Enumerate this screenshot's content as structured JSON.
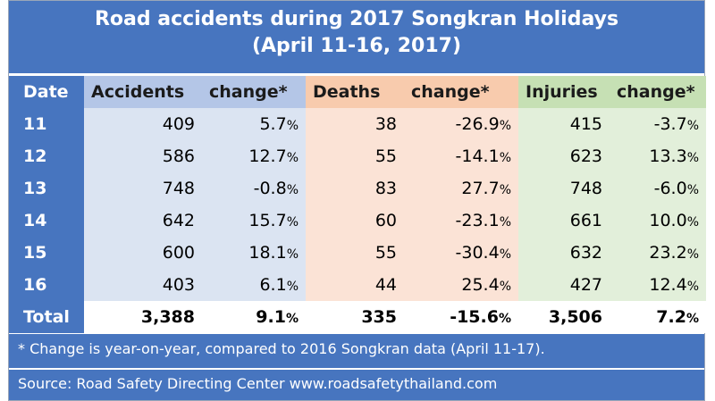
{
  "title": {
    "line1": "Road accidents during 2017 Songkran Holidays",
    "line2": "(April 11-16, 2017)"
  },
  "chart_data": {
    "type": "table",
    "columns": [
      "Date",
      "Accidents",
      "change*",
      "Deaths",
      "change*",
      "Injuries",
      "change*"
    ],
    "rows": [
      [
        "11",
        "409",
        "5.7",
        "38",
        "-26.9",
        "415",
        "-3.7"
      ],
      [
        "12",
        "586",
        "12.7",
        "55",
        "-14.1",
        "623",
        "13.3"
      ],
      [
        "13",
        "748",
        "-0.8",
        "83",
        "27.7",
        "748",
        "-6.0"
      ],
      [
        "14",
        "642",
        "15.7",
        "60",
        "-23.1",
        "661",
        "10.0"
      ],
      [
        "15",
        "600",
        "18.1",
        "55",
        "-30.4",
        "632",
        "23.2"
      ],
      [
        "16",
        "403",
        "6.1",
        "44",
        "25.4",
        "427",
        "12.4"
      ]
    ],
    "total": [
      "Total",
      "3,388",
      "9.1",
      "335",
      "-15.6",
      "3,506",
      "7.2"
    ]
  },
  "footnote": "* Change is year-on-year, compared to 2016 Songkran data (April 11-17).",
  "source": "Source: Road Safety Directing Center www.roadsafetythailand.com",
  "colors": {
    "header_blue": "#4775bf",
    "accidents": "#dbe4f2",
    "deaths": "#fbe3d6",
    "injuries": "#e2efda"
  }
}
